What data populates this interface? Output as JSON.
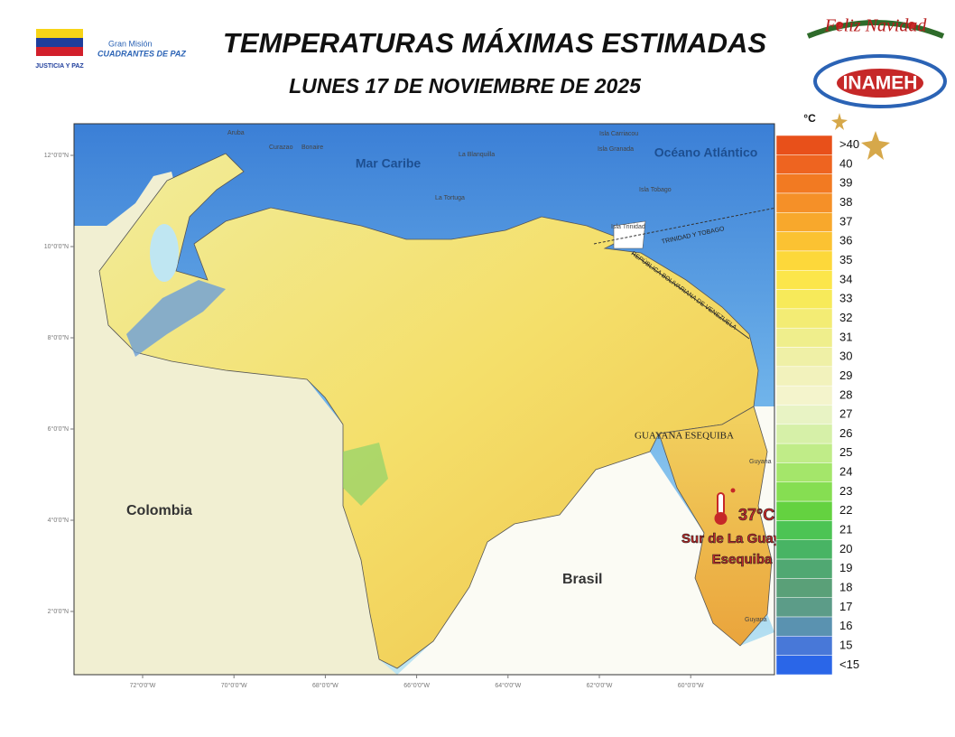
{
  "header": {
    "title": "TEMPERATURAS MÁXIMAS ESTIMADAS",
    "subtitle": "LUNES 17 DE NOVIEMBRE  DE 2025",
    "left_logo_caption": "JUSTICIA Y PAZ",
    "mission_logo_top": "Gran Misión",
    "mission_logo_bottom": "CUADRANTES DE PAZ",
    "greeting": "Feliz Navidad",
    "agency": "INAMEH"
  },
  "map": {
    "labels": {
      "sea": "Mar Caribe",
      "ocean": "Océano Atlántico",
      "colombia": "Colombia",
      "brasil": "Brasil",
      "esequiba": "GUAYANA ESEQUIBA",
      "trinidad_tobago": "TRINIDAD Y TOBAGO",
      "venezuela_border": "REPÚBLICA BOLIVARIANA DE VENEZUELA",
      "aruba": "Aruba",
      "curazao": "Curazao",
      "bonaire": "Bonaire",
      "blanquilla": "La Blanquilla",
      "tortuga": "La Tortuga",
      "carriacou": "Isla Carriacou",
      "granada": "Isla Granada",
      "tobago": "Isla Tobago",
      "trinidad": "Isla Trinidad",
      "guyana_north": "Guyana",
      "guyana_south": "Guyana"
    },
    "highlight": {
      "temperature": "37°C",
      "place_line1": "Sur de La Guayana",
      "place_line2": "Esequiba"
    },
    "lat_ticks": [
      {
        "value": 12,
        "label": "12°0'0\"N"
      },
      {
        "value": 10,
        "label": "10°0'0\"N"
      },
      {
        "value": 8,
        "label": "8°0'0\"N"
      },
      {
        "value": 6,
        "label": "6°0'0\"N"
      },
      {
        "value": 4,
        "label": "4°0'0\"N"
      },
      {
        "value": 2,
        "label": "2°0'0\"N"
      }
    ],
    "lon_ticks": [
      {
        "value": -72,
        "label": "72°0'0\"W"
      },
      {
        "value": -70,
        "label": "70°0'0\"W"
      },
      {
        "value": -68,
        "label": "68°0'0\"W"
      },
      {
        "value": -66,
        "label": "66°0'0\"W"
      },
      {
        "value": -64,
        "label": "64°0'0\"W"
      },
      {
        "value": -62,
        "label": "62°0'0\"W"
      },
      {
        "value": -60,
        "label": "60°0'0\"W"
      }
    ]
  },
  "legend": {
    "unit": "°C",
    "items": [
      {
        "label": ">40",
        "color": "#e8501a"
      },
      {
        "label": "40",
        "color": "#ee6420"
      },
      {
        "label": "39",
        "color": "#f27a22"
      },
      {
        "label": "38",
        "color": "#f59028"
      },
      {
        "label": "37",
        "color": "#f8a82c"
      },
      {
        "label": "36",
        "color": "#fbc232"
      },
      {
        "label": "35",
        "color": "#fdd83a"
      },
      {
        "label": "34",
        "color": "#fce64a"
      },
      {
        "label": "33",
        "color": "#f7ea5a"
      },
      {
        "label": "32",
        "color": "#f3ec74"
      },
      {
        "label": "31",
        "color": "#efee8c"
      },
      {
        "label": "30",
        "color": "#eff0a6"
      },
      {
        "label": "29",
        "color": "#f2f2bc"
      },
      {
        "label": "28",
        "color": "#f4f4cc"
      },
      {
        "label": "27",
        "color": "#e8f3c4"
      },
      {
        "label": "26",
        "color": "#d6f0a8"
      },
      {
        "label": "25",
        "color": "#c0ec88"
      },
      {
        "label": "24",
        "color": "#a4e66a"
      },
      {
        "label": "23",
        "color": "#86de52"
      },
      {
        "label": "22",
        "color": "#64d240"
      },
      {
        "label": "21",
        "color": "#4cc454"
      },
      {
        "label": "20",
        "color": "#48b464"
      },
      {
        "label": "19",
        "color": "#50a872"
      },
      {
        "label": "18",
        "color": "#5aa078"
      },
      {
        "label": "17",
        "color": "#5c9c88"
      },
      {
        "label": "16",
        "color": "#5a92b0"
      },
      {
        "label": "15",
        "color": "#4878d8"
      },
      {
        "label": "<15",
        "color": "#2a66e8"
      }
    ]
  }
}
